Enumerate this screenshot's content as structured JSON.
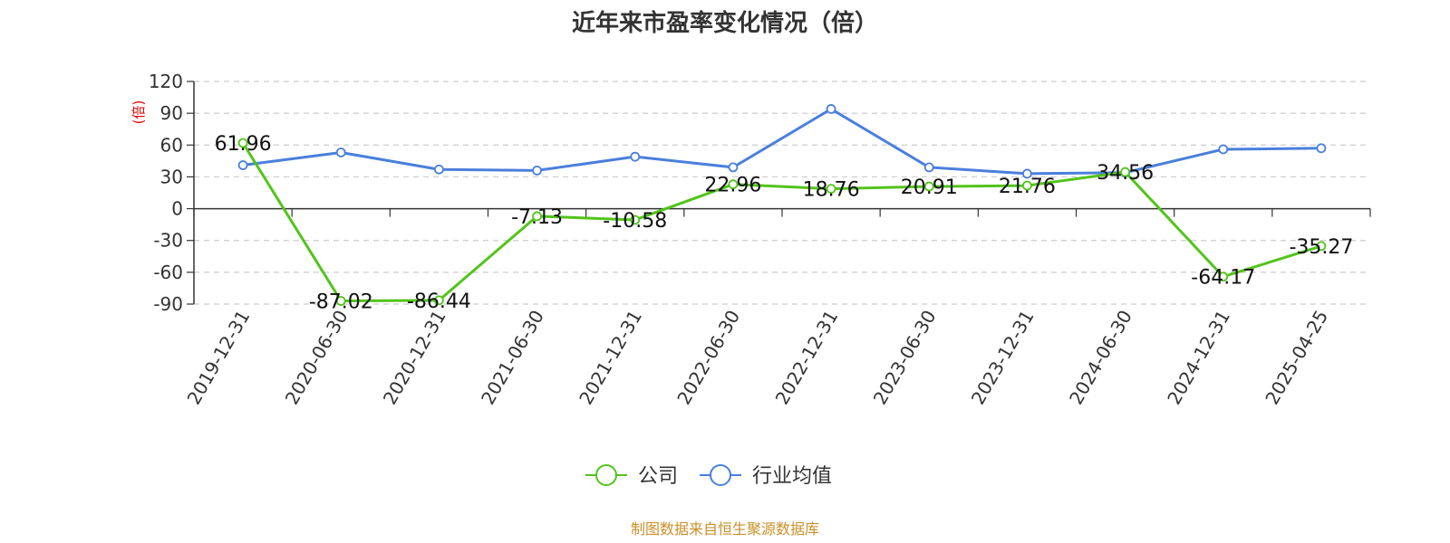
{
  "chart_data": {
    "type": "line",
    "title": "近年来市盈率变化情况（倍）",
    "ylabel": "(倍)",
    "categories": [
      "2019-12-31",
      "2020-06-30",
      "2020-12-31",
      "2021-06-30",
      "2021-12-31",
      "2022-06-30",
      "2022-12-31",
      "2023-06-30",
      "2023-12-31",
      "2024-06-30",
      "2024-12-31",
      "2025-04-25"
    ],
    "ylim": [
      -90,
      120
    ],
    "yticks": [
      120,
      90,
      60,
      30,
      0,
      -30,
      -60,
      -90
    ],
    "grid": true,
    "legend_position": "bottom-center",
    "series": [
      {
        "name": "公司",
        "color": "#52c41a",
        "values": [
          61.96,
          -87.02,
          -86.44,
          -7.13,
          -10.58,
          22.96,
          18.76,
          20.91,
          21.76,
          34.56,
          -64.17,
          -35.27
        ],
        "labels": [
          "61.96",
          "-87.02",
          "-86.44",
          "-7.13",
          "-10.58",
          "22.96",
          "18.76",
          "20.91",
          "21.76",
          "34.56",
          "-64.17",
          "-35.27"
        ]
      },
      {
        "name": "行业均值",
        "color": "#4a7fdc",
        "values": [
          41,
          53,
          37,
          36,
          49,
          39,
          94,
          39,
          33,
          34,
          56,
          57
        ]
      }
    ]
  },
  "source": "制图数据来自恒生聚源数据库"
}
